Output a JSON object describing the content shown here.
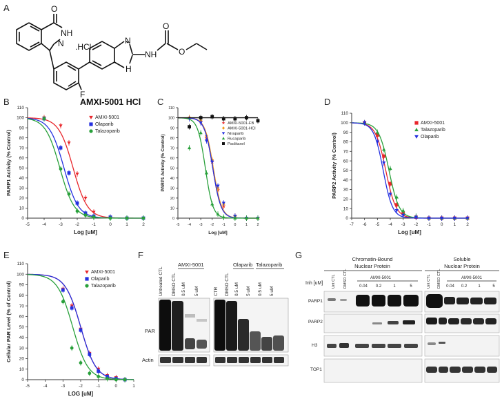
{
  "panel_letters": [
    "A",
    "B",
    "C",
    "D",
    "E",
    "F",
    "G"
  ],
  "molecule": {
    "caption": "AMXI-5001 HCl",
    "atoms": {
      "O1": "O",
      "NH1": "NH",
      "N1": "N",
      "HCl": ".HCl",
      "F": "F",
      "N2": "N",
      "H2": "H",
      "NH2": "NH",
      "O2": "O",
      "O3": "O"
    }
  },
  "chart_data": [
    {
      "id": "B",
      "type": "line",
      "title": "",
      "xlabel": "Log [uM]",
      "ylabel": "PARP1 Activity (% Control)",
      "xlim": [
        -5,
        2
      ],
      "ylim": [
        0,
        110
      ],
      "xticks": [
        -5,
        -4,
        -3,
        -2,
        -1,
        0,
        1,
        2
      ],
      "yticks": [
        0,
        10,
        20,
        30,
        40,
        50,
        60,
        70,
        80,
        90,
        100,
        110
      ],
      "grid": false,
      "legend": "top-right",
      "series": [
        {
          "name": "AMXI-5001",
          "color": "#e8262b",
          "marker": "triangle-down",
          "ic50": -2.25,
          "hill": 1.0,
          "x": [
            -4,
            -3,
            -2.5,
            -2,
            -1.5,
            -1,
            0,
            1,
            2
          ],
          "y": [
            100,
            92,
            75,
            44,
            20,
            6,
            1,
            0,
            0
          ]
        },
        {
          "name": "Olaparib",
          "color": "#2430e0",
          "marker": "square",
          "ic50": -2.8,
          "hill": 1.0,
          "x": [
            -4,
            -3,
            -2.5,
            -2,
            -1.5,
            -1,
            0,
            1,
            2
          ],
          "y": [
            99,
            70,
            45,
            15,
            5,
            2,
            1,
            0,
            0
          ]
        },
        {
          "name": "Talazoparib",
          "color": "#28a03a",
          "marker": "circle",
          "ic50": -3.05,
          "hill": 1.0,
          "x": [
            -4,
            -3,
            -2.5,
            -2,
            -1.5,
            -1,
            0,
            1,
            2
          ],
          "y": [
            99,
            49,
            24,
            7,
            3,
            1,
            0,
            0,
            0
          ]
        }
      ]
    },
    {
      "id": "C",
      "type": "line",
      "title": "",
      "xlabel": "Log [uM]",
      "ylabel": "PARP1 Activity (% Control)",
      "xlim": [
        -5,
        2
      ],
      "ylim": [
        0,
        110
      ],
      "xticks": [
        -5,
        -4,
        -3,
        -2,
        -1,
        0,
        1,
        2
      ],
      "yticks": [
        0,
        10,
        20,
        30,
        40,
        50,
        60,
        70,
        80,
        90,
        100,
        110
      ],
      "grid": false,
      "legend": "center-right",
      "series": [
        {
          "name": "AMXI-5001-FB",
          "color": "#e8262b",
          "marker": "star",
          "ic50": -1.95,
          "hill": 1.2,
          "x": [
            -4,
            -3,
            -2.5,
            -2,
            -1.5,
            -1,
            0,
            1,
            2
          ],
          "y": [
            100,
            96,
            80,
            56,
            28,
            12,
            2,
            0,
            0
          ]
        },
        {
          "name": "AMXI-5001-HCl",
          "color": "#f39a1e",
          "marker": "diamond",
          "ic50": -1.9,
          "hill": 1.2,
          "x": [
            -4,
            -3,
            -2.5,
            -2,
            -1.5,
            -1,
            0,
            1,
            2
          ],
          "y": [
            100,
            97,
            82,
            58,
            30,
            14,
            2,
            0,
            0
          ]
        },
        {
          "name": "Niraparib",
          "color": "#2430e0",
          "marker": "triangle-down",
          "ic50": -1.95,
          "hill": 1.2,
          "x": [
            -4,
            -3,
            -2.5,
            -2,
            -1.5,
            -1,
            0,
            1,
            2
          ],
          "y": [
            99,
            95,
            77,
            56,
            32,
            15,
            2,
            0,
            0
          ]
        },
        {
          "name": "Rucaparib",
          "color": "#28a03a",
          "marker": "triangle-up",
          "ic50": -2.6,
          "hill": 1.3,
          "x": [
            -4,
            -3,
            -2.5,
            -2,
            -1.5,
            -1,
            0,
            1,
            2
          ],
          "y": [
            70,
            85,
            45,
            14,
            4,
            1,
            0,
            0,
            0
          ]
        },
        {
          "name": "Paclitaxel",
          "color": "#111111",
          "marker": "square",
          "ic50": null,
          "flat": 100,
          "x": [
            -4,
            -3,
            -2,
            -1,
            0,
            1,
            2
          ],
          "y": [
            91,
            100,
            101,
            99,
            99,
            100,
            97
          ]
        }
      ]
    },
    {
      "id": "D",
      "type": "line",
      "title": "",
      "xlabel": "Log [uM]",
      "ylabel": "PARP2 Activity (% Control)",
      "xlim": [
        -7,
        2
      ],
      "ylim": [
        0,
        110
      ],
      "xticks": [
        -7,
        -6,
        -5,
        -4,
        -3,
        -2,
        -1,
        0,
        1,
        2
      ],
      "yticks": [
        0,
        10,
        20,
        30,
        40,
        50,
        60,
        70,
        80,
        90,
        100,
        110
      ],
      "grid": false,
      "legend": "top-right",
      "series": [
        {
          "name": "AMXI-5001",
          "color": "#e8262b",
          "marker": "square",
          "ic50": -4.35,
          "hill": 1.1,
          "x": [
            -6,
            -5,
            -4.5,
            -4,
            -3.5,
            -3,
            -2,
            -1,
            0,
            1,
            2
          ],
          "y": [
            100,
            87,
            65,
            36,
            14,
            5,
            1,
            0,
            0,
            0,
            0
          ]
        },
        {
          "name": "Talazoparib",
          "color": "#28a03a",
          "marker": "triangle-up",
          "ic50": -4.1,
          "hill": 1.1,
          "x": [
            -6,
            -5,
            -4.5,
            -4,
            -3.5,
            -3,
            -2,
            -1,
            0,
            1,
            2
          ],
          "y": [
            100,
            90,
            72,
            52,
            22,
            8,
            2,
            0,
            0,
            0,
            0
          ]
        },
        {
          "name": "Olaparib",
          "color": "#2430e0",
          "marker": "triangle-down",
          "ic50": -4.55,
          "hill": 1.2,
          "x": [
            -6,
            -5,
            -4.5,
            -4,
            -3.5,
            -3,
            -2,
            -1,
            0,
            1,
            2
          ],
          "y": [
            100,
            80,
            58,
            25,
            8,
            3,
            1,
            0,
            0,
            0,
            0
          ]
        }
      ]
    },
    {
      "id": "E",
      "type": "line",
      "title": "",
      "xlabel": "LOG [uM]",
      "ylabel": "Cellular PAR Level  (% of Control)",
      "xlim": [
        -5,
        1
      ],
      "ylim": [
        0,
        110
      ],
      "xticks": [
        -5,
        -4,
        -3,
        -2,
        -1,
        0,
        1
      ],
      "yticks": [
        0,
        10,
        20,
        30,
        40,
        50,
        60,
        70,
        80,
        90,
        100,
        110
      ],
      "grid": false,
      "legend": "top-right",
      "series": [
        {
          "name": "AMXI-5001",
          "color": "#e8262b",
          "marker": "triangle-down",
          "ic50": -2.0,
          "hill": 1.0,
          "x": [
            -3,
            -2.5,
            -2,
            -1.5,
            -1,
            -0.5,
            0,
            0.5
          ],
          "y": [
            86,
            70,
            48,
            25,
            10,
            4,
            2,
            0
          ]
        },
        {
          "name": "Olaparib",
          "color": "#2430e0",
          "marker": "square",
          "ic50": -2.0,
          "hill": 1.0,
          "x": [
            -3,
            -2.5,
            -2,
            -1.5,
            -1,
            -0.5,
            0,
            0.5
          ],
          "y": [
            85,
            68,
            47,
            24,
            8,
            3,
            1,
            0
          ]
        },
        {
          "name": "Talazoparib",
          "color": "#28a03a",
          "marker": "circle",
          "ic50": -2.45,
          "hill": 1.0,
          "x": [
            -3,
            -2.5,
            -2,
            -1.5,
            -1,
            -0.5,
            0,
            0.5
          ],
          "y": [
            74,
            30,
            16,
            6,
            3,
            1,
            0,
            0
          ]
        }
      ]
    }
  ],
  "blot_F": {
    "row_labels": [
      "PAR",
      "Actin"
    ],
    "left_lanes": [
      "Untreated CTL",
      "DMSO CTL",
      "0.5 uM",
      "5 uM"
    ],
    "left_group": "AMXI-5001",
    "right_lanes": [
      "CTR",
      "DMSO CTL",
      "0.5 uM",
      "5 uM",
      "0.5 uM",
      "5 uM"
    ],
    "right_groups": [
      "Olaparib",
      "Talazoparib"
    ]
  },
  "blot_G": {
    "left_header": [
      "Chromatin-Bound",
      "Nuclear Protein"
    ],
    "right_header": [
      "Soluble",
      "Nuclear Protein"
    ],
    "inh_label": "Inh [uM]",
    "ctl_lanes": [
      "Unt CTL",
      "DMSO CTL"
    ],
    "group": "AMXI-5001",
    "doses": [
      "0.04",
      "0.2",
      "1",
      "5"
    ],
    "row_labels": [
      "PARP1",
      "PARP2",
      "H3",
      "TOP1"
    ]
  }
}
